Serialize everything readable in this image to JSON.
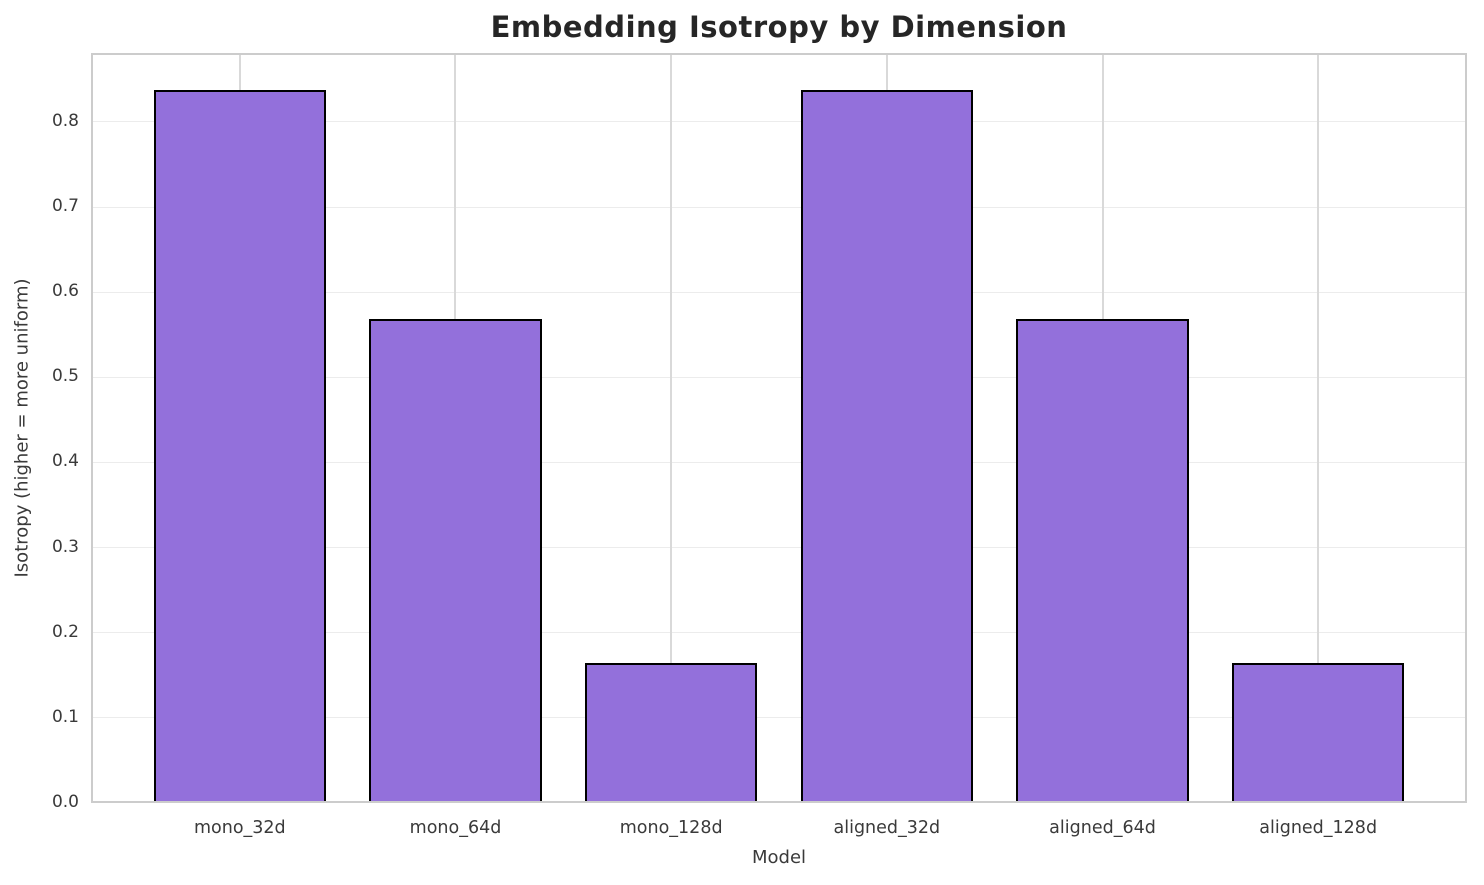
{
  "chart_data": {
    "type": "bar",
    "title": "Embedding Isotropy by Dimension",
    "xlabel": "Model",
    "ylabel": "Isotropy (higher = more uniform)",
    "categories": [
      "mono_32d",
      "mono_64d",
      "mono_128d",
      "aligned_32d",
      "aligned_64d",
      "aligned_128d"
    ],
    "values": [
      0.837,
      0.568,
      0.164,
      0.837,
      0.568,
      0.164
    ],
    "yticks": [
      0.0,
      0.1,
      0.2,
      0.3,
      0.4,
      0.5,
      0.6,
      0.7,
      0.8
    ],
    "ytick_labels": [
      "0.0",
      "0.1",
      "0.2",
      "0.3",
      "0.4",
      "0.5",
      "0.6",
      "0.7",
      "0.8"
    ],
    "ylim": [
      0.0,
      0.881
    ],
    "xlim": [
      -0.69,
      5.69
    ],
    "bar_width": 0.8,
    "grid": true,
    "legend": "none",
    "colors": {
      "bar_fill": "#9370DB",
      "bar_edge": "#000000",
      "grid_h": "#ececec",
      "grid_v": "#d9d9d9",
      "spine": "#cccccc",
      "title_text": "#262626",
      "tick_text": "#3a3a3a",
      "background": "#ffffff"
    }
  }
}
